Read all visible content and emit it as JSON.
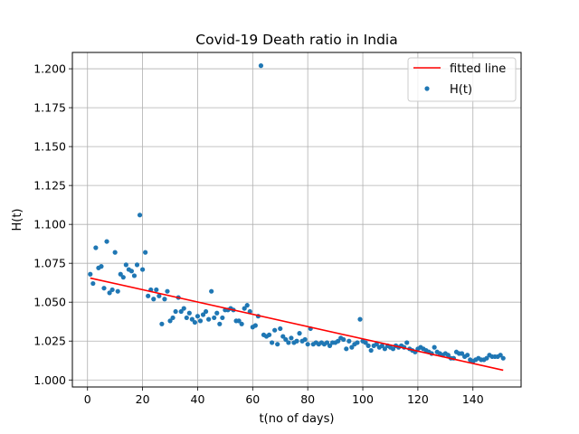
{
  "chart_data": {
    "type": "scatter",
    "title": "Covid-19 Death ratio in India",
    "xlabel": "t(no of days)",
    "ylabel": "H(t)",
    "xlim": [
      -5.5,
      157.5
    ],
    "ylim": [
      0.9955,
      1.2105
    ],
    "xticks": [
      0,
      20,
      40,
      60,
      80,
      100,
      120,
      140
    ],
    "yticks": [
      1.0,
      1.025,
      1.05,
      1.075,
      1.1,
      1.125,
      1.15,
      1.175,
      1.2
    ],
    "ytick_labels": [
      "1.000",
      "1.025",
      "1.050",
      "1.075",
      "1.100",
      "1.125",
      "1.150",
      "1.175",
      "1.200"
    ],
    "grid": true,
    "legend_position": "top-right",
    "colors": {
      "scatter": "#1f77b4",
      "line": "#ff0000",
      "grid": "#b0b0b0"
    },
    "series": [
      {
        "name": "fitted line",
        "kind": "line",
        "x": [
          1,
          151
        ],
        "y": [
          1.0655,
          1.0063
        ]
      },
      {
        "name": "H(t)",
        "kind": "scatter",
        "x": [
          1,
          2,
          3,
          4,
          5,
          6,
          7,
          8,
          9,
          10,
          11,
          12,
          13,
          14,
          15,
          16,
          17,
          18,
          19,
          20,
          21,
          22,
          23,
          24,
          25,
          26,
          27,
          28,
          29,
          30,
          31,
          32,
          33,
          34,
          35,
          36,
          37,
          38,
          39,
          40,
          41,
          42,
          43,
          44,
          45,
          46,
          47,
          48,
          49,
          50,
          51,
          52,
          53,
          54,
          55,
          56,
          57,
          58,
          59,
          60,
          61,
          62,
          63,
          64,
          65,
          66,
          67,
          68,
          69,
          70,
          71,
          72,
          73,
          74,
          75,
          76,
          77,
          78,
          79,
          80,
          81,
          82,
          83,
          84,
          85,
          86,
          87,
          88,
          89,
          90,
          91,
          92,
          93,
          94,
          95,
          96,
          97,
          98,
          99,
          100,
          101,
          102,
          103,
          104,
          105,
          106,
          107,
          108,
          109,
          110,
          111,
          112,
          113,
          114,
          115,
          116,
          117,
          118,
          119,
          120,
          121,
          122,
          123,
          124,
          125,
          126,
          127,
          128,
          129,
          130,
          131,
          132,
          133,
          134,
          135,
          136,
          137,
          138,
          139,
          140,
          141,
          142,
          143,
          144,
          145,
          146,
          147,
          148,
          149,
          150,
          151
        ],
        "y": [
          1.068,
          1.062,
          1.085,
          1.072,
          1.073,
          1.059,
          1.089,
          1.056,
          1.058,
          1.082,
          1.057,
          1.068,
          1.066,
          1.074,
          1.071,
          1.07,
          1.067,
          1.074,
          1.106,
          1.071,
          1.082,
          1.054,
          1.058,
          1.052,
          1.058,
          1.054,
          1.036,
          1.052,
          1.057,
          1.038,
          1.04,
          1.044,
          1.053,
          1.044,
          1.046,
          1.04,
          1.043,
          1.039,
          1.037,
          1.041,
          1.038,
          1.042,
          1.044,
          1.039,
          1.057,
          1.04,
          1.043,
          1.036,
          1.04,
          1.045,
          1.045,
          1.046,
          1.045,
          1.038,
          1.038,
          1.036,
          1.046,
          1.048,
          1.044,
          1.034,
          1.035,
          1.041,
          1.202,
          1.029,
          1.028,
          1.029,
          1.024,
          1.032,
          1.023,
          1.033,
          1.028,
          1.026,
          1.024,
          1.027,
          1.024,
          1.025,
          1.03,
          1.025,
          1.026,
          1.023,
          1.033,
          1.023,
          1.024,
          1.023,
          1.024,
          1.023,
          1.024,
          1.022,
          1.024,
          1.024,
          1.025,
          1.027,
          1.026,
          1.02,
          1.025,
          1.021,
          1.023,
          1.024,
          1.039,
          1.025,
          1.024,
          1.022,
          1.019,
          1.022,
          1.023,
          1.021,
          1.022,
          1.02,
          1.022,
          1.021,
          1.02,
          1.022,
          1.021,
          1.022,
          1.021,
          1.024,
          1.02,
          1.019,
          1.018,
          1.02,
          1.021,
          1.02,
          1.019,
          1.018,
          1.017,
          1.021,
          1.018,
          1.017,
          1.016,
          1.017,
          1.016,
          1.014,
          1.014,
          1.018,
          1.017,
          1.017,
          1.015,
          1.016,
          1.013,
          1.012,
          1.013,
          1.014,
          1.013,
          1.013,
          1.014,
          1.016,
          1.015,
          1.015,
          1.015,
          1.016,
          1.014
        ]
      }
    ]
  }
}
